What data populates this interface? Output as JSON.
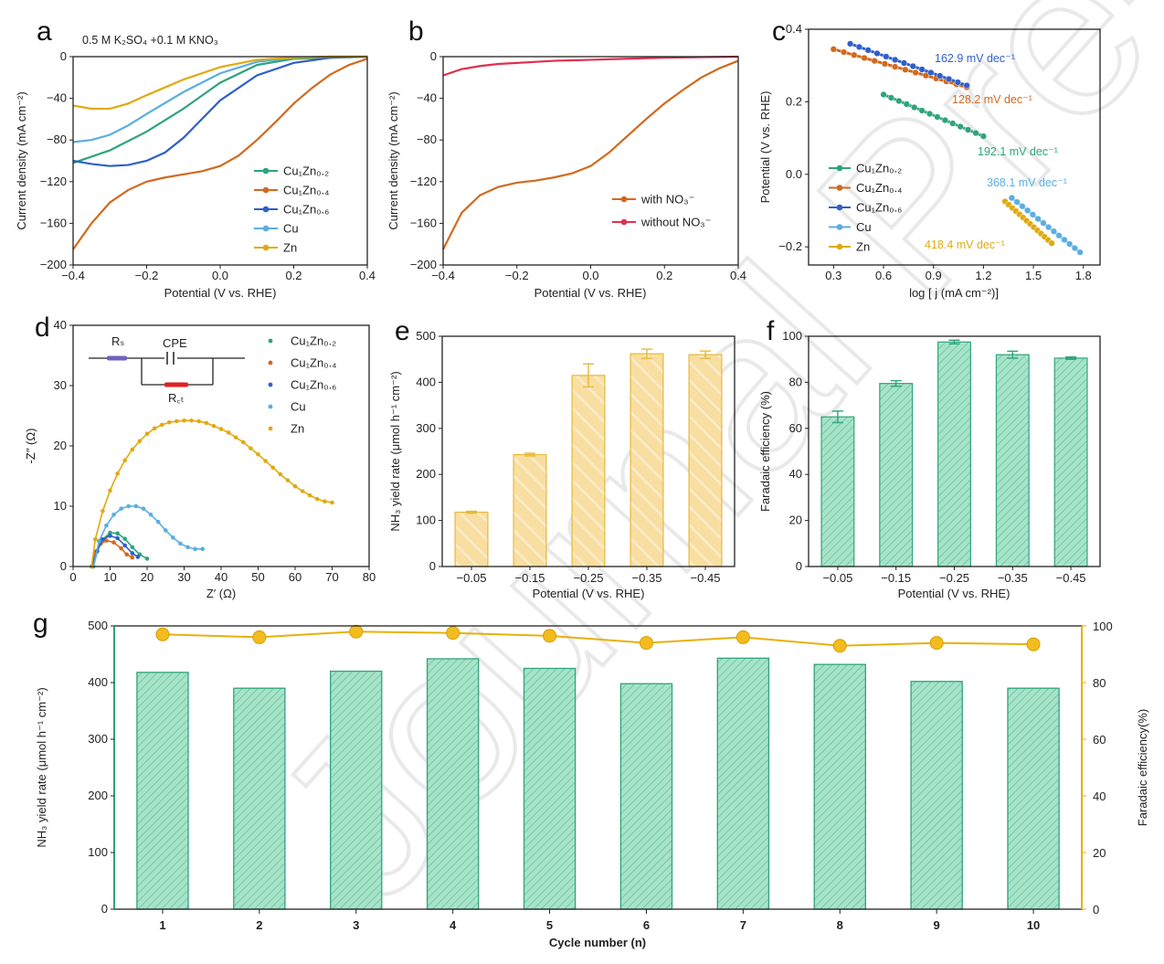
{
  "watermark": "Journal Pre-proof",
  "colors": {
    "cu02": "#2fa37c",
    "cu04": "#d2691e",
    "cu06": "#2f5fc9",
    "cu": "#5aaee0",
    "zn": "#e0aa10",
    "with_no3": "#d2691e",
    "without_no3": "#e03050",
    "bar_green": "#9fe0c5",
    "bar_green_edge": "#2fa37c",
    "bar_yellow": "#f8dc98",
    "bar_yellow_edge": "#e7b93c",
    "fe_line": "#e8b00a"
  },
  "chart_data": [
    {
      "id": "a",
      "panel_label": "a",
      "type": "line",
      "annotation": "0.5 M K₂SO₄ +0.1 M KNO₃",
      "xlabel": "Potential (V vs. RHE)",
      "ylabel": "Current density (mA cm⁻²)",
      "xlim": [
        -0.4,
        0.4
      ],
      "ylim": [
        -200,
        0
      ],
      "xticks": [
        -0.4,
        -0.2,
        0.0,
        0.2,
        0.4
      ],
      "xtick_labels": [
        "−0.4",
        "−0.2",
        "0.0",
        "0.2",
        "0.4"
      ],
      "yticks": [
        0,
        -40,
        -80,
        -120,
        -160,
        -200
      ],
      "ytick_labels": [
        "0",
        "−40",
        "−80",
        "−120",
        "−160",
        "−200"
      ],
      "legend_position": "lower-right",
      "series": [
        {
          "name": "Cu₁Zn₀.₂",
          "color_key": "cu02",
          "x": [
            -0.4,
            -0.3,
            -0.2,
            -0.1,
            0.0,
            0.1,
            0.2,
            0.3,
            0.4
          ],
          "y": [
            -102,
            -90,
            -72,
            -50,
            -25,
            -8,
            -2,
            -1,
            0
          ]
        },
        {
          "name": "Cu₁Zn₀.₄",
          "color_key": "cu04",
          "x": [
            -0.4,
            -0.35,
            -0.3,
            -0.25,
            -0.2,
            -0.15,
            -0.1,
            -0.05,
            0.0,
            0.05,
            0.1,
            0.15,
            0.2,
            0.25,
            0.3,
            0.35,
            0.4
          ],
          "y": [
            -185,
            -160,
            -140,
            -128,
            -120,
            -116,
            -113,
            -110,
            -105,
            -95,
            -80,
            -63,
            -45,
            -30,
            -17,
            -8,
            -2
          ]
        },
        {
          "name": "Cu₁Zn₀.₆",
          "color_key": "cu06",
          "x": [
            -0.4,
            -0.35,
            -0.3,
            -0.25,
            -0.2,
            -0.15,
            -0.1,
            -0.05,
            0.0,
            0.1,
            0.2,
            0.3,
            0.4
          ],
          "y": [
            -100,
            -103,
            -105,
            -104,
            -100,
            -92,
            -78,
            -60,
            -42,
            -18,
            -6,
            -1,
            0
          ]
        },
        {
          "name": "Cu",
          "color_key": "cu",
          "x": [
            -0.4,
            -0.35,
            -0.3,
            -0.25,
            -0.2,
            -0.1,
            0.0,
            0.1,
            0.2,
            0.3,
            0.4
          ],
          "y": [
            -82,
            -80,
            -75,
            -66,
            -55,
            -34,
            -16,
            -5,
            -1,
            0,
            0
          ]
        },
        {
          "name": "Zn",
          "color_key": "zn",
          "x": [
            -0.4,
            -0.35,
            -0.3,
            -0.25,
            -0.2,
            -0.1,
            0.0,
            0.1,
            0.2,
            0.3,
            0.4
          ],
          "y": [
            -47,
            -50,
            -50,
            -45,
            -37,
            -22,
            -10,
            -3,
            -1,
            0,
            0
          ]
        }
      ]
    },
    {
      "id": "b",
      "panel_label": "b",
      "type": "line",
      "xlabel": "Potential (V vs. RHE)",
      "ylabel": "Current density (mA cm⁻²)",
      "xlim": [
        -0.4,
        0.4
      ],
      "ylim": [
        -200,
        0
      ],
      "xticks": [
        -0.4,
        -0.2,
        0.0,
        0.2,
        0.4
      ],
      "xtick_labels": [
        "−0.4",
        "−0.2",
        "0.0",
        "0.2",
        "0.4"
      ],
      "yticks": [
        0,
        -40,
        -80,
        -120,
        -160,
        -200
      ],
      "ytick_labels": [
        "0",
        "−40",
        "−80",
        "−120",
        "−160",
        "−200"
      ],
      "legend_position": "lower-right",
      "series": [
        {
          "name": "with NO₃⁻",
          "color_key": "with_no3",
          "x": [
            -0.4,
            -0.35,
            -0.3,
            -0.25,
            -0.2,
            -0.15,
            -0.1,
            -0.05,
            0.0,
            0.05,
            0.1,
            0.15,
            0.2,
            0.25,
            0.3,
            0.35,
            0.4
          ],
          "y": [
            -185,
            -150,
            -133,
            -125,
            -121,
            -119,
            -116,
            -112,
            -105,
            -92,
            -76,
            -60,
            -45,
            -32,
            -20,
            -11,
            -4
          ]
        },
        {
          "name": "without NO₃⁻",
          "color_key": "without_no3",
          "x": [
            -0.4,
            -0.35,
            -0.3,
            -0.25,
            -0.2,
            -0.1,
            0.0,
            0.1,
            0.2,
            0.3,
            0.4
          ],
          "y": [
            -18,
            -12,
            -9,
            -7,
            -6,
            -4,
            -3,
            -2,
            -1,
            -0.5,
            0
          ]
        }
      ]
    },
    {
      "id": "c",
      "panel_label": "c",
      "type": "line",
      "xlabel": "log [ j (mA cm⁻²)]",
      "ylabel": "Potential (V vs. RHE)",
      "xlim": [
        0.15,
        1.9
      ],
      "ylim": [
        -0.25,
        0.4
      ],
      "xticks": [
        0.3,
        0.6,
        0.9,
        1.2,
        1.5,
        1.8
      ],
      "xtick_labels": [
        "0.3",
        "0.6",
        "0.9",
        "1.2",
        "1.5",
        "1.8"
      ],
      "yticks": [
        -0.2,
        0.0,
        0.2,
        0.4
      ],
      "ytick_labels": [
        "−0.2",
        "0.0",
        "0.2",
        "0.4"
      ],
      "legend_position": "lower-left",
      "series": [
        {
          "name": "Cu₁Zn₀.₂",
          "color_key": "cu02",
          "x": [
            0.6,
            1.2
          ],
          "y": [
            0.22,
            0.105
          ],
          "slope_label": "192.1 mV dec⁻¹"
        },
        {
          "name": "Cu₁Zn₀.₄",
          "color_key": "cu04",
          "x": [
            0.3,
            1.1
          ],
          "y": [
            0.345,
            0.24
          ],
          "slope_label": "128.2 mV dec⁻¹"
        },
        {
          "name": "Cu₁Zn₀.₆",
          "color_key": "cu06",
          "x": [
            0.4,
            1.1
          ],
          "y": [
            0.36,
            0.245
          ],
          "slope_label": "162.9 mV dec⁻¹"
        },
        {
          "name": "Cu",
          "color_key": "cu",
          "x": [
            1.37,
            1.78
          ],
          "y": [
            -0.065,
            -0.215
          ],
          "slope_label": "368.1 mV dec⁻¹"
        },
        {
          "name": "Zn",
          "color_key": "zn",
          "x": [
            1.33,
            1.61
          ],
          "y": [
            -0.075,
            -0.19
          ],
          "slope_label": "418.4 mV dec⁻¹"
        }
      ]
    },
    {
      "id": "d",
      "panel_label": "d",
      "type": "scatter",
      "xlabel": "Z′ (Ω)",
      "ylabel": "-Z″ (Ω)",
      "xlim": [
        0,
        80
      ],
      "ylim": [
        0,
        40
      ],
      "xticks": [
        0,
        10,
        20,
        30,
        40,
        50,
        60,
        70,
        80
      ],
      "xtick_labels": [
        "0",
        "10",
        "20",
        "30",
        "40",
        "50",
        "60",
        "70",
        "80"
      ],
      "yticks": [
        0,
        10,
        20,
        30,
        40
      ],
      "ytick_labels": [
        "0",
        "10",
        "20",
        "30",
        "40"
      ],
      "legend_position": "top-right",
      "circuit": {
        "rs": "Rₛ",
        "cpe": "CPE",
        "rct": "R꜀ₜ"
      },
      "series": [
        {
          "name": "Cu₁Zn₀.₂",
          "color_key": "cu02",
          "x": [
            5.5,
            6.5,
            8,
            10,
            12,
            14,
            16,
            18,
            20
          ],
          "y": [
            0,
            2.5,
            4.5,
            5.6,
            5.5,
            4.6,
            3.2,
            2.0,
            1.3
          ]
        },
        {
          "name": "Cu₁Zn₀.₄",
          "color_key": "cu04",
          "x": [
            5,
            6,
            7.5,
            9,
            11,
            13,
            14.5,
            16
          ],
          "y": [
            0,
            2.4,
            3.8,
            4.3,
            4.0,
            3.0,
            2.0,
            1.5
          ]
        },
        {
          "name": "Cu₁Zn₀.₆",
          "color_key": "cu06",
          "x": [
            5,
            6.5,
            8,
            10,
            12,
            14,
            16,
            17.5
          ],
          "y": [
            0,
            2.6,
            4.5,
            5.1,
            4.7,
            3.5,
            2.2,
            1.6
          ]
        },
        {
          "name": "Cu",
          "color_key": "cu",
          "x": [
            5.5,
            7,
            9,
            11,
            13,
            15,
            17,
            19,
            21,
            23,
            25,
            27,
            29,
            31,
            33,
            35
          ],
          "y": [
            0,
            4.2,
            6.8,
            8.6,
            9.6,
            10,
            10,
            9.6,
            8.6,
            7.4,
            6,
            4.8,
            3.8,
            3.2,
            2.9,
            2.9
          ]
        },
        {
          "name": "Zn",
          "color_key": "zn",
          "x": [
            5,
            6,
            8,
            10,
            12,
            14,
            16,
            18,
            20,
            22,
            24,
            26,
            28,
            30,
            32,
            34,
            36,
            38,
            40,
            42,
            44,
            46,
            48,
            50,
            52,
            54,
            56,
            58,
            60,
            62,
            64,
            66,
            68,
            70
          ],
          "y": [
            0,
            4.5,
            9.2,
            12.6,
            15.4,
            17.6,
            19.4,
            20.8,
            22,
            22.9,
            23.5,
            23.9,
            24.1,
            24.2,
            24.2,
            24.1,
            23.8,
            23.3,
            22.8,
            22.2,
            21.4,
            20.6,
            19.6,
            18.6,
            17.5,
            16.4,
            15.3,
            14.3,
            13.3,
            12.5,
            11.8,
            11.2,
            10.8,
            10.6
          ]
        }
      ]
    },
    {
      "id": "e",
      "panel_label": "e",
      "type": "bar",
      "xlabel": "Potential (V vs. RHE)",
      "ylabel": "NH₃ yield rate (μmol h⁻¹ cm⁻²)",
      "ylim": [
        0,
        500
      ],
      "yticks": [
        0,
        100,
        200,
        300,
        400,
        500
      ],
      "ytick_labels": [
        "0",
        "100",
        "200",
        "300",
        "400",
        "500"
      ],
      "categories": [
        "−0.05",
        "−0.15",
        "−0.25",
        "−0.35",
        "−0.45"
      ],
      "values": [
        118,
        243,
        415,
        462,
        460
      ],
      "errors": [
        2,
        3,
        25,
        10,
        8
      ]
    },
    {
      "id": "f",
      "panel_label": "f",
      "type": "bar",
      "xlabel": "Potential (V vs. RHE)",
      "ylabel": "Faradaic efficiency (%)",
      "ylim": [
        0,
        100
      ],
      "yticks": [
        0,
        20,
        40,
        60,
        80,
        100
      ],
      "ytick_labels": [
        "0",
        "20",
        "40",
        "60",
        "80",
        "100"
      ],
      "categories": [
        "−0.05",
        "−0.15",
        "−0.25",
        "−0.35",
        "−0.45"
      ],
      "values": [
        65,
        79.5,
        97.5,
        92,
        90.5
      ],
      "errors": [
        2.5,
        1.2,
        0.8,
        1.5,
        0.5
      ]
    },
    {
      "id": "g",
      "panel_label": "g",
      "type": "bar",
      "xlabel": "Cycle number (n)",
      "ylabel": "NH₃ yield rate (μmol h⁻¹ cm⁻²)",
      "y2label": "Faradaic efficiency(%)",
      "ylim": [
        0,
        500
      ],
      "y2lim": [
        0,
        100
      ],
      "yticks": [
        0,
        100,
        200,
        300,
        400,
        500
      ],
      "ytick_labels": [
        "0",
        "100",
        "200",
        "300",
        "400",
        "500"
      ],
      "y2ticks": [
        0,
        20,
        40,
        60,
        80,
        100
      ],
      "y2tick_labels": [
        "0",
        "20",
        "40",
        "60",
        "80",
        "100"
      ],
      "categories": [
        "1",
        "2",
        "3",
        "4",
        "5",
        "6",
        "7",
        "8",
        "9",
        "10"
      ],
      "series": [
        {
          "name": "NH₃ yield rate",
          "values": [
            418,
            390,
            420,
            442,
            425,
            398,
            443,
            432,
            402,
            390
          ]
        },
        {
          "name": "Faradaic efficiency",
          "values": [
            97,
            96,
            98,
            97.5,
            96.5,
            94,
            96,
            93,
            94,
            93.5
          ]
        }
      ]
    }
  ]
}
